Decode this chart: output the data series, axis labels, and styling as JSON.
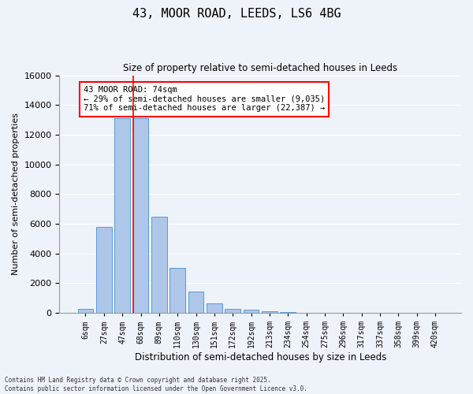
{
  "title1": "43, MOOR ROAD, LEEDS, LS6 4BG",
  "title2": "Size of property relative to semi-detached houses in Leeds",
  "xlabel": "Distribution of semi-detached houses by size in Leeds",
  "ylabel": "Number of semi-detached properties",
  "bar_labels": [
    "6sqm",
    "27sqm",
    "47sqm",
    "68sqm",
    "89sqm",
    "110sqm",
    "130sqm",
    "151sqm",
    "172sqm",
    "192sqm",
    "213sqm",
    "234sqm",
    "254sqm",
    "275sqm",
    "296sqm",
    "317sqm",
    "337sqm",
    "358sqm",
    "399sqm",
    "420sqm"
  ],
  "bar_values": [
    300,
    5800,
    13100,
    13100,
    6500,
    3050,
    1450,
    650,
    300,
    200,
    130,
    60,
    20,
    0,
    0,
    0,
    0,
    0,
    0,
    0
  ],
  "bar_color": "#aec6e8",
  "bar_edge_color": "#5b9bd5",
  "vline_color": "red",
  "vline_pos": 2.575,
  "annotation_title": "43 MOOR ROAD: 74sqm",
  "annotation_line1": "← 29% of semi-detached houses are smaller (9,035)",
  "annotation_line2": "71% of semi-detached houses are larger (22,387) →",
  "annotation_box_color": "white",
  "annotation_box_edge": "red",
  "ylim": [
    0,
    16000
  ],
  "yticks": [
    0,
    2000,
    4000,
    6000,
    8000,
    10000,
    12000,
    14000,
    16000
  ],
  "footnote1": "Contains HM Land Registry data © Crown copyright and database right 2025.",
  "footnote2": "Contains public sector information licensed under the Open Government Licence v3.0.",
  "bg_color": "#eef2f9",
  "grid_color": "white"
}
